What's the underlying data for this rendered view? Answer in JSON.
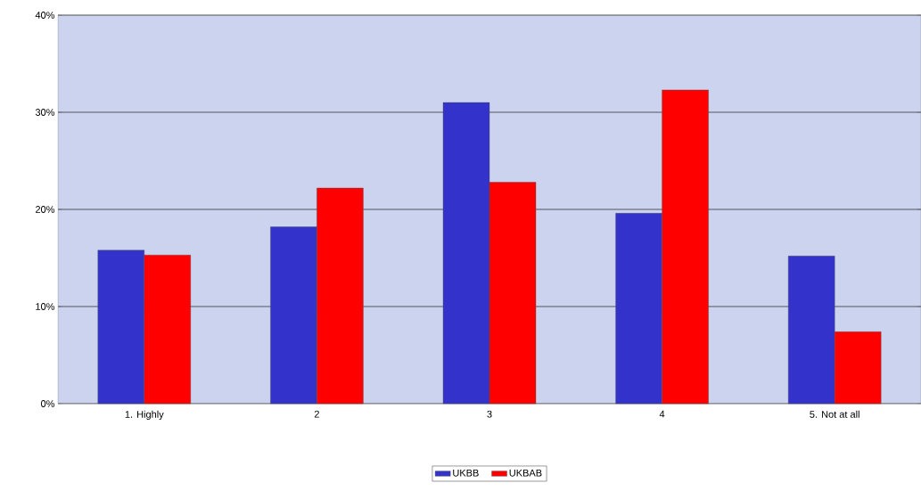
{
  "chart_data": {
    "type": "bar",
    "categories": [
      "1. Highly",
      "2",
      "3",
      "4",
      "5. Not at all"
    ],
    "series": [
      {
        "name": "UKBB",
        "color": "#3333cc",
        "values": [
          15.8,
          18.2,
          31.0,
          19.6,
          15.2
        ]
      },
      {
        "name": "UKBAB",
        "color": "#ff0000",
        "values": [
          15.3,
          22.2,
          22.8,
          32.3,
          7.4
        ]
      }
    ],
    "ylim": [
      0,
      40
    ],
    "yticks": [
      {
        "value": 0,
        "label": "0%"
      },
      {
        "value": 10,
        "label": "10%"
      },
      {
        "value": 20,
        "label": "20%"
      },
      {
        "value": 30,
        "label": "30%"
      },
      {
        "value": 40,
        "label": "40%"
      }
    ],
    "grid": "y",
    "legend": "bottom"
  }
}
